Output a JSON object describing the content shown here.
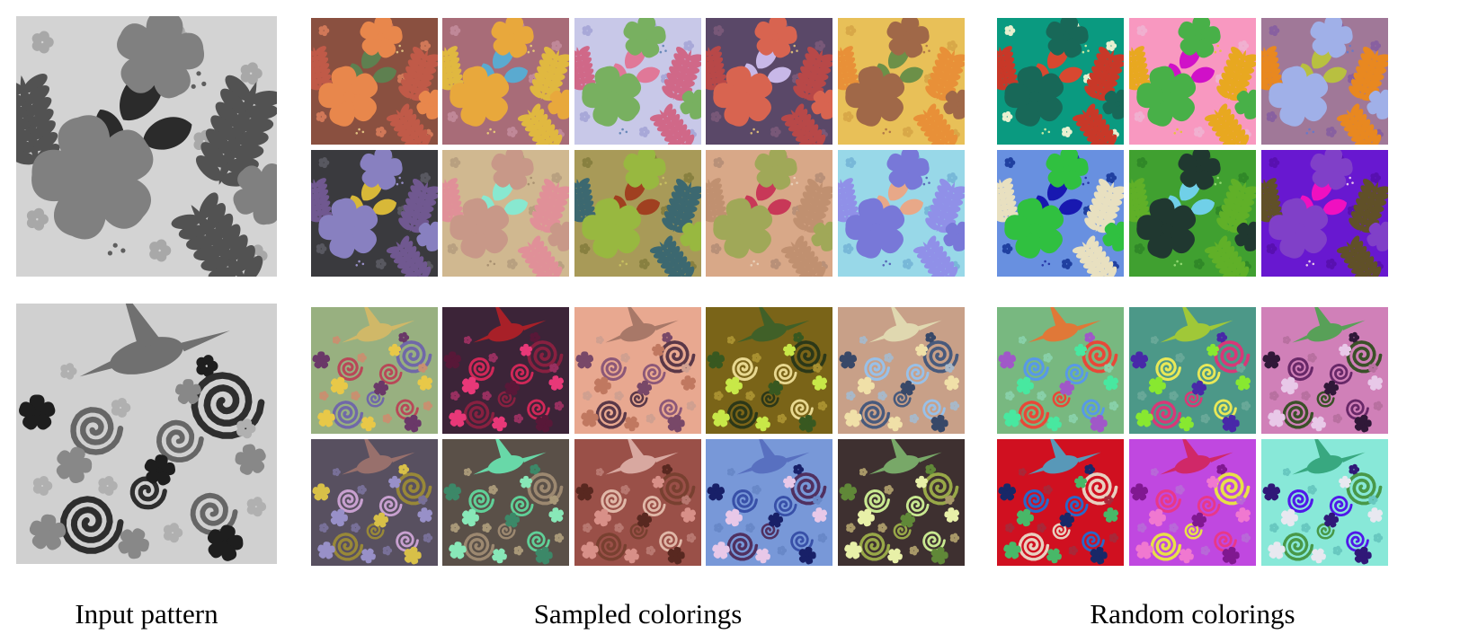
{
  "captions": {
    "input": "Input pattern",
    "sampled": "Sampled colorings",
    "random": "Random colorings"
  },
  "patterns": [
    {
      "name": "hibiscus",
      "input": {
        "bg": "#d3d3d3",
        "flower": "#808080",
        "leaf": "#2b2b2b",
        "leaf2": "#525252",
        "small": "#a8a8a8",
        "dot": "#5e5e5e"
      },
      "sampled": [
        {
          "bg": "#8a5040",
          "flower": "#e8874c",
          "leaf": "#5e8050",
          "leaf2": "#c05a48",
          "small": "#d07858",
          "dot": "#e0c080"
        },
        {
          "bg": "#a86c78",
          "flower": "#e8a83c",
          "leaf": "#5aaad0",
          "leaf2": "#e0b840",
          "small": "#c08898",
          "dot": "#e8c878"
        },
        {
          "bg": "#c8c8e8",
          "flower": "#78b060",
          "leaf": "#e07898",
          "leaf2": "#d06888",
          "small": "#a8a8d8",
          "dot": "#6888b8"
        },
        {
          "bg": "#5a4868",
          "flower": "#d86450",
          "leaf": "#c8b8e8",
          "leaf2": "#b84848",
          "small": "#785878",
          "dot": "#d8b878"
        },
        {
          "bg": "#e8c058",
          "flower": "#a06848",
          "leaf": "#6c9048",
          "leaf2": "#e89038",
          "small": "#d8a848",
          "dot": "#b07848"
        },
        {
          "bg": "#3a3a3e",
          "flower": "#8880c0",
          "leaf": "#d8b838",
          "leaf2": "#705890",
          "small": "#585860",
          "dot": "#9890c8"
        },
        {
          "bg": "#d0b890",
          "flower": "#c89888",
          "leaf": "#88e8d0",
          "leaf2": "#e09098",
          "small": "#b8a080",
          "dot": "#a89070"
        },
        {
          "bg": "#a89a58",
          "flower": "#98b840",
          "leaf": "#a04020",
          "leaf2": "#3c6870",
          "small": "#888040",
          "dot": "#c8c060"
        },
        {
          "bg": "#d8a888",
          "flower": "#a0a858",
          "leaf": "#c83858",
          "leaf2": "#c09070",
          "small": "#b89078",
          "dot": "#e8d0b8"
        },
        {
          "bg": "#98d8e8",
          "flower": "#7878d8",
          "leaf": "#e8a888",
          "leaf2": "#9090e8",
          "small": "#78b8d8",
          "dot": "#5868b8"
        }
      ],
      "random": [
        {
          "bg": "#0a9a80",
          "flower": "#186858",
          "leaf": "#d84830",
          "leaf2": "#c83828",
          "small": "#e8f0d0",
          "dot": "#c8e8a0"
        },
        {
          "bg": "#f898c0",
          "flower": "#48b048",
          "leaf": "#d010c8",
          "leaf2": "#e8a820",
          "small": "#f0b0d0",
          "dot": "#e8c040"
        },
        {
          "bg": "#a07898",
          "flower": "#a0b0e8",
          "leaf": "#b8c040",
          "leaf2": "#e88820",
          "small": "#8860a0",
          "dot": "#6878c8"
        },
        {
          "bg": "#6890e0",
          "flower": "#30c040",
          "leaf": "#1818b0",
          "leaf2": "#e8e0c0",
          "small": "#2040a0",
          "dot": "#2838a8"
        },
        {
          "bg": "#40a030",
          "flower": "#203830",
          "leaf": "#70d0e8",
          "leaf2": "#60b028",
          "small": "#308828",
          "dot": "#90d870"
        },
        {
          "bg": "#6818d0",
          "flower": "#8040c8",
          "leaf": "#f010c0",
          "leaf2": "#605028",
          "small": "#5810b0",
          "dot": "#e8c8e8"
        }
      ]
    },
    {
      "name": "hummingbird",
      "input": {
        "bg": "#d0d0d0",
        "swirl": "#666666",
        "swirl2": "#2e2e2e",
        "flower": "#888888",
        "flower2": "#1e1e1e",
        "bird": "#707070",
        "small": "#b0b0b0"
      },
      "sampled": [
        {
          "bg": "#98b080",
          "swirl": "#b84858",
          "swirl2": "#7068a8",
          "flower": "#e8c848",
          "flower2": "#6a3868",
          "bird": "#d0b868",
          "small": "#c89070"
        },
        {
          "bg": "#3c2438",
          "swirl": "#d02858",
          "swirl2": "#882040",
          "flower": "#e83878",
          "flower2": "#581838",
          "bird": "#a82028",
          "small": "#983060"
        },
        {
          "bg": "#e8a890",
          "swirl": "#8c5878",
          "swirl2": "#5a3848",
          "flower": "#c07860",
          "flower2": "#784868",
          "bird": "#a87868",
          "small": "#d0a090"
        },
        {
          "bg": "#7a6418",
          "swirl": "#e8d890",
          "swirl2": "#2c3818",
          "flower": "#c8e848",
          "flower2": "#385820",
          "bird": "#406028",
          "small": "#a89030"
        },
        {
          "bg": "#c8a088",
          "swirl": "#98c0e8",
          "swirl2": "#485a7c",
          "flower": "#f0e0a8",
          "flower2": "#384868",
          "bird": "#e0d8b0",
          "small": "#a8b8c8"
        },
        {
          "bg": "#585060",
          "swirl": "#c8a0d0",
          "swirl2": "#988838",
          "flower": "#9890c8",
          "flower2": "#d8c048",
          "bird": "#98706c",
          "small": "#787098"
        },
        {
          "bg": "#5a5048",
          "swirl": "#60d098",
          "swirl2": "#9c8870",
          "flower": "#88e8b8",
          "flower2": "#3c8868",
          "bird": "#68d8a8",
          "small": "#a89878"
        },
        {
          "bg": "#9a5048",
          "swirl": "#e0b8a8",
          "swirl2": "#784030",
          "flower": "#d89088",
          "flower2": "#582820",
          "bird": "#d8a8a0",
          "small": "#b87870"
        },
        {
          "bg": "#7898d8",
          "swirl": "#3850a8",
          "swirl2": "#503060",
          "flower": "#e8c8e8",
          "flower2": "#182068",
          "bird": "#5870c0",
          "small": "#6888c8"
        },
        {
          "bg": "#3e3030",
          "swirl": "#c8e890",
          "swirl2": "#98a848",
          "flower": "#e8f0a8",
          "flower2": "#608838",
          "bird": "#78a868",
          "small": "#a89868"
        }
      ],
      "random": [
        {
          "bg": "#78b880",
          "swirl": "#5898e8",
          "swirl2": "#e84838",
          "flower": "#48e8a0",
          "flower2": "#a058c8",
          "bird": "#e07838",
          "small": "#88d0a8"
        },
        {
          "bg": "#4c9888",
          "swirl": "#e8e858",
          "swirl2": "#d83878",
          "flower": "#88e830",
          "flower2": "#4828a8",
          "bird": "#a0c838",
          "small": "#68a898"
        },
        {
          "bg": "#d080b8",
          "swirl": "#682868",
          "swirl2": "#3a5028",
          "flower": "#e8c8e8",
          "flower2": "#301838",
          "bird": "#58a058",
          "small": "#b870a0"
        },
        {
          "bg": "#d01020",
          "swirl": "#2868c8",
          "swirl2": "#e8d0c0",
          "flower": "#48b868",
          "flower2": "#182868",
          "bird": "#5898b8",
          "small": "#a82838"
        },
        {
          "bg": "#c048e0",
          "swirl": "#e83888",
          "swirl2": "#e8e048",
          "flower": "#f078d0",
          "flower2": "#801890",
          "bird": "#d02868",
          "small": "#b868d8"
        },
        {
          "bg": "#88e8d8",
          "swirl": "#5018e8",
          "swirl2": "#489848",
          "flower": "#e8e8f0",
          "flower2": "#301878",
          "bird": "#38a880",
          "small": "#68c8c0"
        }
      ]
    }
  ]
}
